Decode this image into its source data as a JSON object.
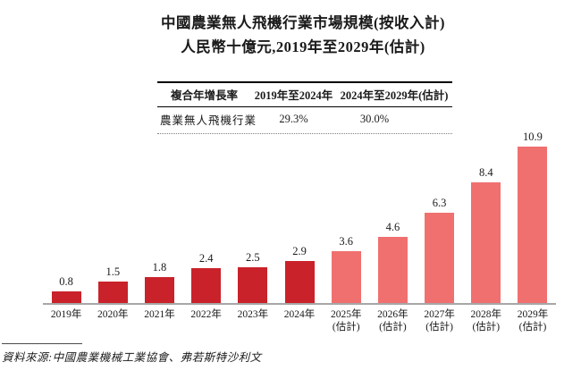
{
  "title": {
    "line1": "中國農業無人飛機行業市場規模(按收入計)",
    "line2": "人民幣十億元,2019年至2029年(估計)"
  },
  "cagr_table": {
    "headers": [
      "複合年增長率",
      "2019年至2024年",
      "2024年至2029年(估計)"
    ],
    "rows": [
      {
        "label": "農業無人飛機行業",
        "cagr_2019_2024": "29.3%",
        "cagr_2024_2029": "30.0%"
      }
    ]
  },
  "chart_data": {
    "type": "bar",
    "title": "中國農業無人飛機行業市場規模(按收入計)",
    "subtitle": "人民幣十億元,2019年至2029年(估計)",
    "ylabel": "人民幣十億元",
    "categories": [
      "2019年",
      "2020年",
      "2021年",
      "2022年",
      "2023年",
      "2024年",
      "2025年",
      "2026年",
      "2027年",
      "2028年",
      "2029年"
    ],
    "category_notes": [
      "",
      "",
      "",
      "",
      "",
      "",
      "(估計)",
      "(估計)",
      "(估計)",
      "(估計)",
      "(估計)"
    ],
    "values": [
      0.8,
      1.5,
      1.8,
      2.4,
      2.5,
      2.9,
      3.6,
      4.6,
      6.3,
      8.4,
      10.9
    ],
    "estimate_start_index": 6,
    "ylim": [
      0,
      11
    ],
    "grid": "off",
    "legend": "none",
    "bar_colors": {
      "actual": "#C9222A",
      "estimate": "#F07070"
    },
    "axis_color": "#A7A7A7"
  },
  "source": "資料來源:中國農業機械工業協會、弗若斯特沙利文"
}
